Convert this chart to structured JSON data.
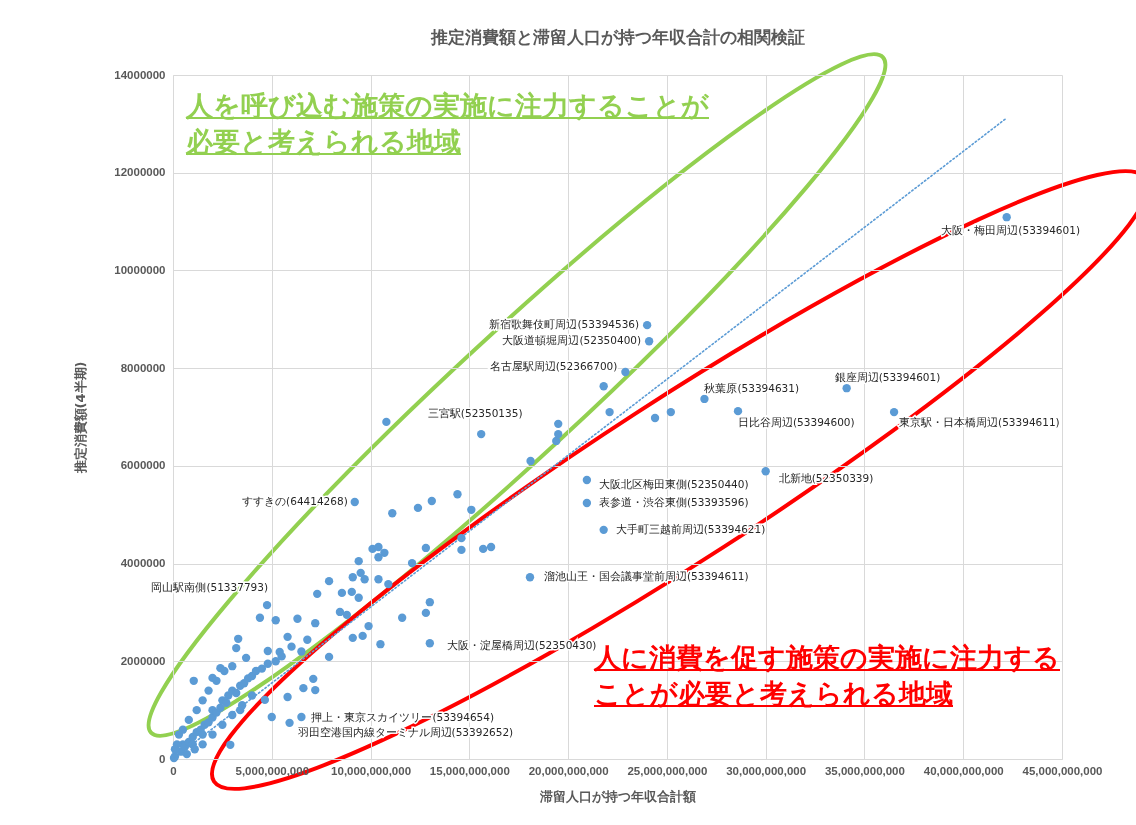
{
  "chart_data": {
    "type": "scatter",
    "title": "推定消費額と滞留人口が持つ年収合計の相関検証",
    "xlabel": "滞留人口が持つ年収合計額",
    "ylabel": "推定消費額(4半期)",
    "xlim": [
      0,
      45000000000
    ],
    "xticks": [
      0,
      {
        "value": 5000000000,
        "label": "5,000,000,000"
      },
      {
        "value": 10000000000,
        "label": "10,000,000,000"
      },
      {
        "value": 15000000000,
        "label": "15,000,000,000"
      },
      {
        "value": 20000000000,
        "label": "20,000,000,000"
      },
      {
        "value": 25000000000,
        "label": "25,000,000,000"
      },
      {
        "value": 30000000000,
        "label": "30,000,000,000"
      },
      {
        "value": 35000000000,
        "label": "35,000,000,000"
      },
      {
        "value": 40000000000,
        "label": "40,000,000,000"
      },
      {
        "value": 45000000000,
        "label": "45,000,000,000"
      }
    ],
    "ylim": [
      0,
      14000000
    ],
    "yticks": [
      0,
      2000000,
      4000000,
      6000000,
      8000000,
      10000000,
      12000000,
      14000000
    ],
    "grid": true,
    "marker": "circle",
    "line_style": "dotted",
    "series": [
      {
        "type": "scatter",
        "color": "#5b9bd5",
        "x": [
          42200000000,
          24000000000,
          24100000000,
          22900000000,
          34100000000,
          26900000000,
          28600000000,
          36500000000,
          10800000000,
          15600000000,
          30000000000,
          20950000000,
          20950000000,
          21800000000,
          9200000000,
          18070000000,
          13000000000,
          4760000000,
          1050000000,
          6500000000,
          5900000000,
          5000000000,
          18100000000,
          19400000000,
          19500000000,
          19500000000,
          21800000000,
          22100000000,
          24400000000,
          25200000000,
          15700000000,
          16100000000,
          11100000000,
          12400000000,
          13100000000,
          14400000000,
          15100000000,
          14600000000,
          14600000000,
          10100000000,
          10400000000,
          10700000000,
          10400000000,
          9400000000,
          12100000000,
          12800000000,
          9100000000,
          9500000000,
          9700000000,
          7900000000,
          10400000000,
          10900000000,
          7300000000,
          8550000000,
          9050000000,
          13000000000,
          12800000000,
          11600000000,
          10500000000,
          4400000000,
          5200000000,
          3300000000,
          3200000000,
          4800000000,
          6300000000,
          7200000000,
          8450000000,
          8800000000,
          9900000000,
          9400000000,
          9100000000,
          9600000000,
          7900000000,
          6800000000,
          5800000000,
          5400000000,
          7100000000,
          7200000000,
          6600000000,
          5800000000,
          3700000000,
          2400000000,
          2000000000,
          2900000000,
          4650000000,
          3400000000,
          100000000,
          400000000,
          500000000,
          600000000,
          800000000,
          1000000000,
          1000000000,
          1200000000,
          1400000000,
          1500000000,
          1600000000,
          1800000000,
          2000000000,
          2000000000,
          2200000000,
          2400000000,
          2500000000,
          2700000000,
          2800000000,
          3000000000,
          3200000000,
          3400000000,
          3600000000,
          3800000000,
          4000000000,
          4200000000,
          4500000000,
          4800000000,
          5200000000,
          5500000000,
          6000000000,
          6500000000,
          300000000,
          500000000,
          800000000,
          1200000000,
          1500000000,
          1800000000,
          2200000000,
          2600000000,
          3000000000,
          200000000,
          100000000,
          50000000,
          1500000000,
          2000000000,
          2500000000,
          3000000000,
          3500000000,
          4000000000,
          700000000,
          1100000000
        ],
        "values": [
          11090000,
          8880000,
          8550000,
          7920000,
          7590000,
          7370000,
          7120000,
          7100000,
          6900000,
          6650000,
          5890000,
          5710000,
          5240000,
          4690000,
          5260000,
          3720000,
          2370000,
          3150000,
          1600000,
          860000,
          740000,
          860000,
          6100000,
          6510000,
          6650000,
          6860000,
          7630000,
          7100000,
          6980000,
          7100000,
          4300000,
          4340000,
          5030000,
          5140000,
          5280000,
          5420000,
          5100000,
          4520000,
          4280000,
          4300000,
          4340000,
          4220000,
          4130000,
          4050000,
          4010000,
          4320000,
          3720000,
          3810000,
          3680000,
          3640000,
          3680000,
          3580000,
          3380000,
          3400000,
          3420000,
          3210000,
          2990000,
          2890000,
          2350000,
          2890000,
          2840000,
          2460000,
          2270000,
          2210000,
          2870000,
          2780000,
          3010000,
          2950000,
          2720000,
          3300000,
          2480000,
          2520000,
          2090000,
          2440000,
          2500000,
          2190000,
          1640000,
          1410000,
          1450000,
          1270000,
          2070000,
          1860000,
          1660000,
          290000,
          1210000,
          1000000,
          50000,
          150000,
          300000,
          250000,
          350000,
          450000,
          300000,
          550000,
          600000,
          500000,
          700000,
          750000,
          850000,
          1000000,
          950000,
          1050000,
          1200000,
          1150000,
          1300000,
          1400000,
          1350000,
          1500000,
          1550000,
          1650000,
          1700000,
          1800000,
          1850000,
          1950000,
          2000000,
          2100000,
          2300000,
          2200000,
          500000,
          600000,
          800000,
          1000000,
          1200000,
          1400000,
          1600000,
          1800000,
          1900000,
          300000,
          200000,
          20000,
          300000,
          500000,
          700000,
          900000,
          1100000,
          1300000,
          100000,
          200000
        ]
      },
      {
        "type": "line",
        "color": "#5b9bd5",
        "marker": "none",
        "x": [
          0,
          42200000000
        ],
        "values": [
          0,
          13120000
        ]
      }
    ],
    "annotations": [
      {
        "text": "大阪・梅田周辺(53394601)",
        "x": 42200000000,
        "y": 11090000
      },
      {
        "text": "新宿歌舞伎町周辺(53394536)",
        "x": 24000000000,
        "y": 8880000
      },
      {
        "text": "大阪道頓堀周辺(52350400)",
        "x": 24100000000,
        "y": 8550000
      },
      {
        "text": "名古屋駅周辺(52366700)",
        "x": 22900000000,
        "y": 7920000
      },
      {
        "text": "銀座周辺(53394601)",
        "x": 34100000000,
        "y": 7590000
      },
      {
        "text": "秋葉原(53394631)",
        "x": 26900000000,
        "y": 7370000
      },
      {
        "text": "日比谷周辺(53394600)",
        "x": 28600000000,
        "y": 7120000
      },
      {
        "text": "東京駅・日本橋周辺(53394611)",
        "x": 36500000000,
        "y": 7100000
      },
      {
        "text": "三宮駅(52350135)",
        "x": 15600000000,
        "y": 6650000
      },
      {
        "text": "北新地(52350339)",
        "x": 30000000000,
        "y": 5890000
      },
      {
        "text": "大阪北区梅田東側(52350440)",
        "x": 20950000000,
        "y": 5710000
      },
      {
        "text": "表参道・渋谷東側(53393596)",
        "x": 20950000000,
        "y": 5240000
      },
      {
        "text": "大手町三越前周辺(53394621)",
        "x": 21800000000,
        "y": 4690000
      },
      {
        "text": "すすきの(64414268)",
        "x": 9200000000,
        "y": 5260000
      },
      {
        "text": "溜池山王・国会議事堂前周辺(53394611)",
        "x": 18070000000,
        "y": 3720000
      },
      {
        "text": "大阪・淀屋橋周辺(52350430)",
        "x": 13000000000,
        "y": 2370000
      },
      {
        "text": "岡山駅南側(51337793)",
        "x": 4760000000,
        "y": 3150000
      },
      {
        "text": "押上・東京スカイツリー(53394654)",
        "x": 6500000000,
        "y": 860000
      },
      {
        "text": "羽田空港国内線ターミナル周辺(53392652)",
        "x": 5900000000,
        "y": 740000
      },
      "人を呼び込む施策の実施に注力することが必要と考えられる地域",
      "人に消費を促す施策の実施に注力することが必要と考えられる地域"
    ]
  }
}
